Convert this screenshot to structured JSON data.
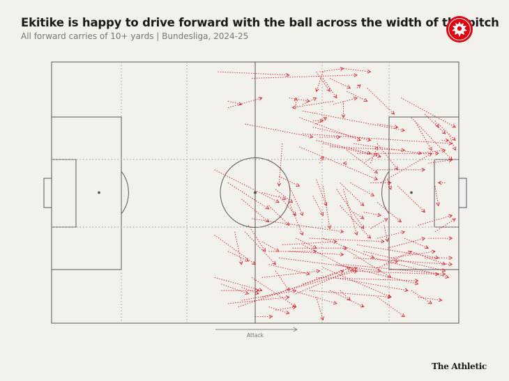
{
  "title": "Ekitike is happy to drive forward with the ball across the width of the pitch",
  "subtitle": "All forward carries of 10+ yards | Bundesliga, 2024-25",
  "brand": "The Athletic",
  "crest": "eintracht-frankfurt-eagle-logo",
  "colors": {
    "background": "#f2f1eb",
    "pitch_lines": "#555555",
    "zone_lines": "#9a9a9a",
    "carry": "#d4202c",
    "crest": "#e1000f"
  },
  "chart_data": {
    "type": "pitch_arrows",
    "coordinate_system": "StatsBomb-like pitch, x 0-120 yards (left to right, attacking right), y 0-80 yards (top to bottom)",
    "direction_label": "Attack",
    "grid": "zone dividers dotted",
    "carries": [
      [
        49,
        3,
        70,
        4
      ],
      [
        59,
        5,
        90,
        4
      ],
      [
        79,
        3,
        86,
        2
      ],
      [
        86,
        2,
        94,
        3
      ],
      [
        78,
        3,
        82,
        9
      ],
      [
        80,
        5,
        84,
        11
      ],
      [
        80,
        3,
        78,
        9
      ],
      [
        82,
        5,
        88,
        8
      ],
      [
        90,
        8,
        91,
        7
      ],
      [
        87,
        9,
        93,
        12
      ],
      [
        93,
        8,
        101,
        16
      ],
      [
        103,
        11,
        119,
        20
      ],
      [
        83,
        13,
        90,
        11
      ],
      [
        70,
        11,
        76,
        12
      ],
      [
        74,
        13,
        78,
        11
      ],
      [
        72,
        14,
        72,
        11
      ],
      [
        52,
        14,
        62,
        11
      ],
      [
        52,
        12,
        56,
        13
      ],
      [
        83,
        12,
        71,
        14
      ],
      [
        86,
        12,
        86,
        17
      ],
      [
        78,
        19,
        81,
        17
      ],
      [
        73,
        17,
        91,
        24
      ],
      [
        77,
        18,
        80,
        18
      ],
      [
        77,
        20,
        94,
        24
      ],
      [
        74,
        15,
        104,
        21
      ],
      [
        74,
        22,
        118,
        25
      ],
      [
        57,
        19,
        77,
        23
      ],
      [
        79,
        23,
        85,
        23
      ],
      [
        78,
        24,
        94,
        28
      ],
      [
        80,
        25,
        97,
        29
      ],
      [
        82,
        26,
        104,
        27
      ],
      [
        87,
        27,
        96,
        34
      ],
      [
        90,
        28,
        114,
        28
      ],
      [
        92,
        31,
        96,
        28
      ],
      [
        96,
        33,
        110,
        33
      ],
      [
        87,
        31,
        86,
        31
      ],
      [
        79,
        31,
        80,
        29
      ],
      [
        94,
        31,
        96,
        26
      ],
      [
        68,
        25,
        67,
        38
      ],
      [
        73,
        26,
        96,
        36
      ],
      [
        97,
        37,
        112,
        28
      ],
      [
        96,
        25,
        102,
        33
      ],
      [
        89,
        25,
        109,
        28
      ],
      [
        107,
        18,
        112,
        27
      ],
      [
        106,
        17,
        118,
        30
      ],
      [
        110,
        16,
        116,
        22
      ],
      [
        114,
        19,
        119,
        24
      ],
      [
        108,
        28,
        116,
        27
      ],
      [
        111,
        31,
        118,
        30
      ],
      [
        96,
        19,
        102,
        20
      ],
      [
        113,
        18,
        114,
        20
      ],
      [
        115,
        24,
        117,
        24
      ],
      [
        117,
        22,
        119,
        27
      ],
      [
        99,
        36,
        100,
        39
      ],
      [
        102,
        38,
        110,
        46
      ],
      [
        113,
        38,
        114,
        44
      ],
      [
        116,
        37,
        114,
        37
      ],
      [
        94,
        37,
        100,
        37
      ],
      [
        88,
        37,
        95,
        41
      ],
      [
        85,
        37,
        92,
        44
      ],
      [
        78,
        36,
        81,
        44
      ],
      [
        67,
        35,
        73,
        38
      ],
      [
        66,
        39,
        71,
        43
      ],
      [
        62,
        40,
        69,
        42
      ],
      [
        48,
        33,
        67,
        43
      ],
      [
        52,
        37,
        64,
        45
      ],
      [
        56,
        42,
        64,
        49
      ],
      [
        64,
        44,
        70,
        50
      ],
      [
        67,
        41,
        72,
        47
      ],
      [
        70,
        38,
        74,
        47
      ],
      [
        70,
        43,
        74,
        53
      ],
      [
        77,
        41,
        80,
        47
      ],
      [
        80,
        38,
        82,
        51
      ],
      [
        84,
        39,
        92,
        51
      ],
      [
        86,
        39,
        90,
        53
      ],
      [
        89,
        46,
        92,
        48
      ],
      [
        85,
        44,
        94,
        54
      ],
      [
        92,
        46,
        97,
        47
      ],
      [
        94,
        51,
        99,
        48
      ],
      [
        96,
        43,
        103,
        49
      ],
      [
        98,
        50,
        99,
        55
      ],
      [
        96,
        54,
        104,
        52
      ],
      [
        99,
        57,
        110,
        54
      ],
      [
        104,
        54,
        111,
        57
      ],
      [
        108,
        50,
        118,
        47
      ],
      [
        111,
        54,
        118,
        54
      ],
      [
        113,
        52,
        119,
        48
      ],
      [
        90,
        56,
        114,
        60
      ],
      [
        92,
        58,
        116,
        64
      ],
      [
        95,
        60,
        117,
        66
      ],
      [
        89,
        60,
        118,
        62
      ],
      [
        86,
        62,
        116,
        65
      ],
      [
        88,
        64,
        114,
        65
      ],
      [
        84,
        62,
        108,
        68
      ],
      [
        80,
        63,
        100,
        72
      ],
      [
        83,
        66,
        105,
        70
      ],
      [
        78,
        66,
        108,
        67
      ],
      [
        76,
        70,
        100,
        72
      ],
      [
        74,
        68,
        88,
        63
      ],
      [
        72,
        71,
        90,
        63
      ],
      [
        71,
        70,
        84,
        74
      ],
      [
        66,
        64,
        70,
        70
      ],
      [
        62,
        66,
        79,
        64
      ],
      [
        59,
        66,
        72,
        75
      ],
      [
        62,
        72,
        90,
        64
      ],
      [
        56,
        73,
        72,
        70
      ],
      [
        55,
        75,
        86,
        64
      ],
      [
        52,
        74,
        70,
        72
      ],
      [
        50,
        70,
        61,
        70
      ],
      [
        50,
        68,
        58,
        71
      ],
      [
        48,
        66,
        62,
        70
      ],
      [
        52,
        58,
        58,
        61
      ],
      [
        48,
        53,
        60,
        62
      ],
      [
        54,
        52,
        56,
        62
      ],
      [
        58,
        50,
        63,
        58
      ],
      [
        62,
        55,
        67,
        58
      ],
      [
        59,
        48,
        86,
        52
      ],
      [
        57,
        52,
        66,
        62
      ],
      [
        64,
        58,
        78,
        58
      ],
      [
        68,
        56,
        84,
        55
      ],
      [
        71,
        57,
        87,
        57
      ],
      [
        74,
        56,
        89,
        64
      ],
      [
        76,
        54,
        98,
        55
      ],
      [
        80,
        54,
        95,
        60
      ],
      [
        72,
        54,
        78,
        57
      ],
      [
        70,
        58,
        86,
        59
      ],
      [
        67,
        60,
        97,
        64
      ],
      [
        64,
        62,
        76,
        65
      ],
      [
        86,
        57,
        100,
        66
      ],
      [
        96,
        63,
        102,
        61
      ],
      [
        98,
        62,
        106,
        58
      ],
      [
        100,
        60,
        113,
        58
      ],
      [
        106,
        58,
        116,
        62
      ],
      [
        110,
        60,
        118,
        60
      ],
      [
        82,
        70,
        92,
        75
      ],
      [
        85,
        70,
        88,
        73
      ],
      [
        64,
        75,
        70,
        77
      ],
      [
        66,
        76,
        72,
        75
      ],
      [
        60,
        78,
        65,
        78
      ],
      [
        56,
        69,
        61,
        71
      ],
      [
        78,
        72,
        80,
        79
      ],
      [
        96,
        72,
        104,
        78
      ],
      [
        106,
        70,
        112,
        74
      ],
      [
        108,
        72,
        115,
        73
      ]
    ]
  }
}
